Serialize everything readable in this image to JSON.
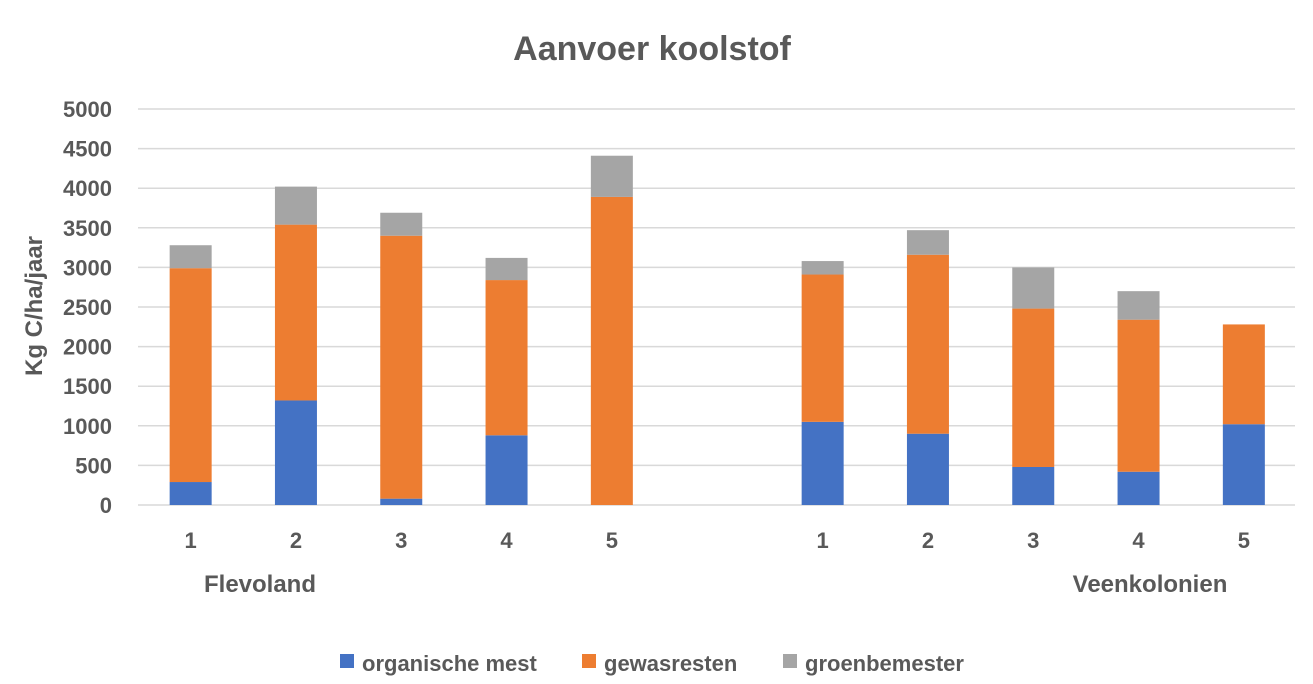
{
  "chart_data": {
    "type": "bar",
    "stacked": true,
    "title": "Aanvoer koolstof",
    "xlabel": "",
    "ylabel": "Kg C/ha/jaar",
    "ylim": [
      0,
      5000
    ],
    "yticks": [
      0,
      500,
      1000,
      1500,
      2000,
      2500,
      3000,
      3500,
      4000,
      4500,
      5000
    ],
    "groups": [
      {
        "name": "Flevoland",
        "categories": [
          "1",
          "2",
          "3",
          "4",
          "5"
        ]
      },
      {
        "name": "Veenkolonien",
        "categories": [
          "1",
          "2",
          "3",
          "4",
          "5"
        ]
      }
    ],
    "series": [
      {
        "name": "organische mest",
        "color": "#4472c4",
        "values": [
          290,
          1320,
          80,
          880,
          0,
          1050,
          900,
          480,
          420,
          1020
        ]
      },
      {
        "name": "gewasresten",
        "color": "#ed7d31",
        "values": [
          2700,
          2220,
          3320,
          1960,
          3890,
          1860,
          2260,
          2000,
          1920,
          1260
        ]
      },
      {
        "name": "groenbemester",
        "color": "#a5a5a5",
        "values": [
          290,
          480,
          290,
          280,
          520,
          170,
          310,
          520,
          360,
          0
        ]
      }
    ],
    "legend": "bottom",
    "grid": true
  }
}
